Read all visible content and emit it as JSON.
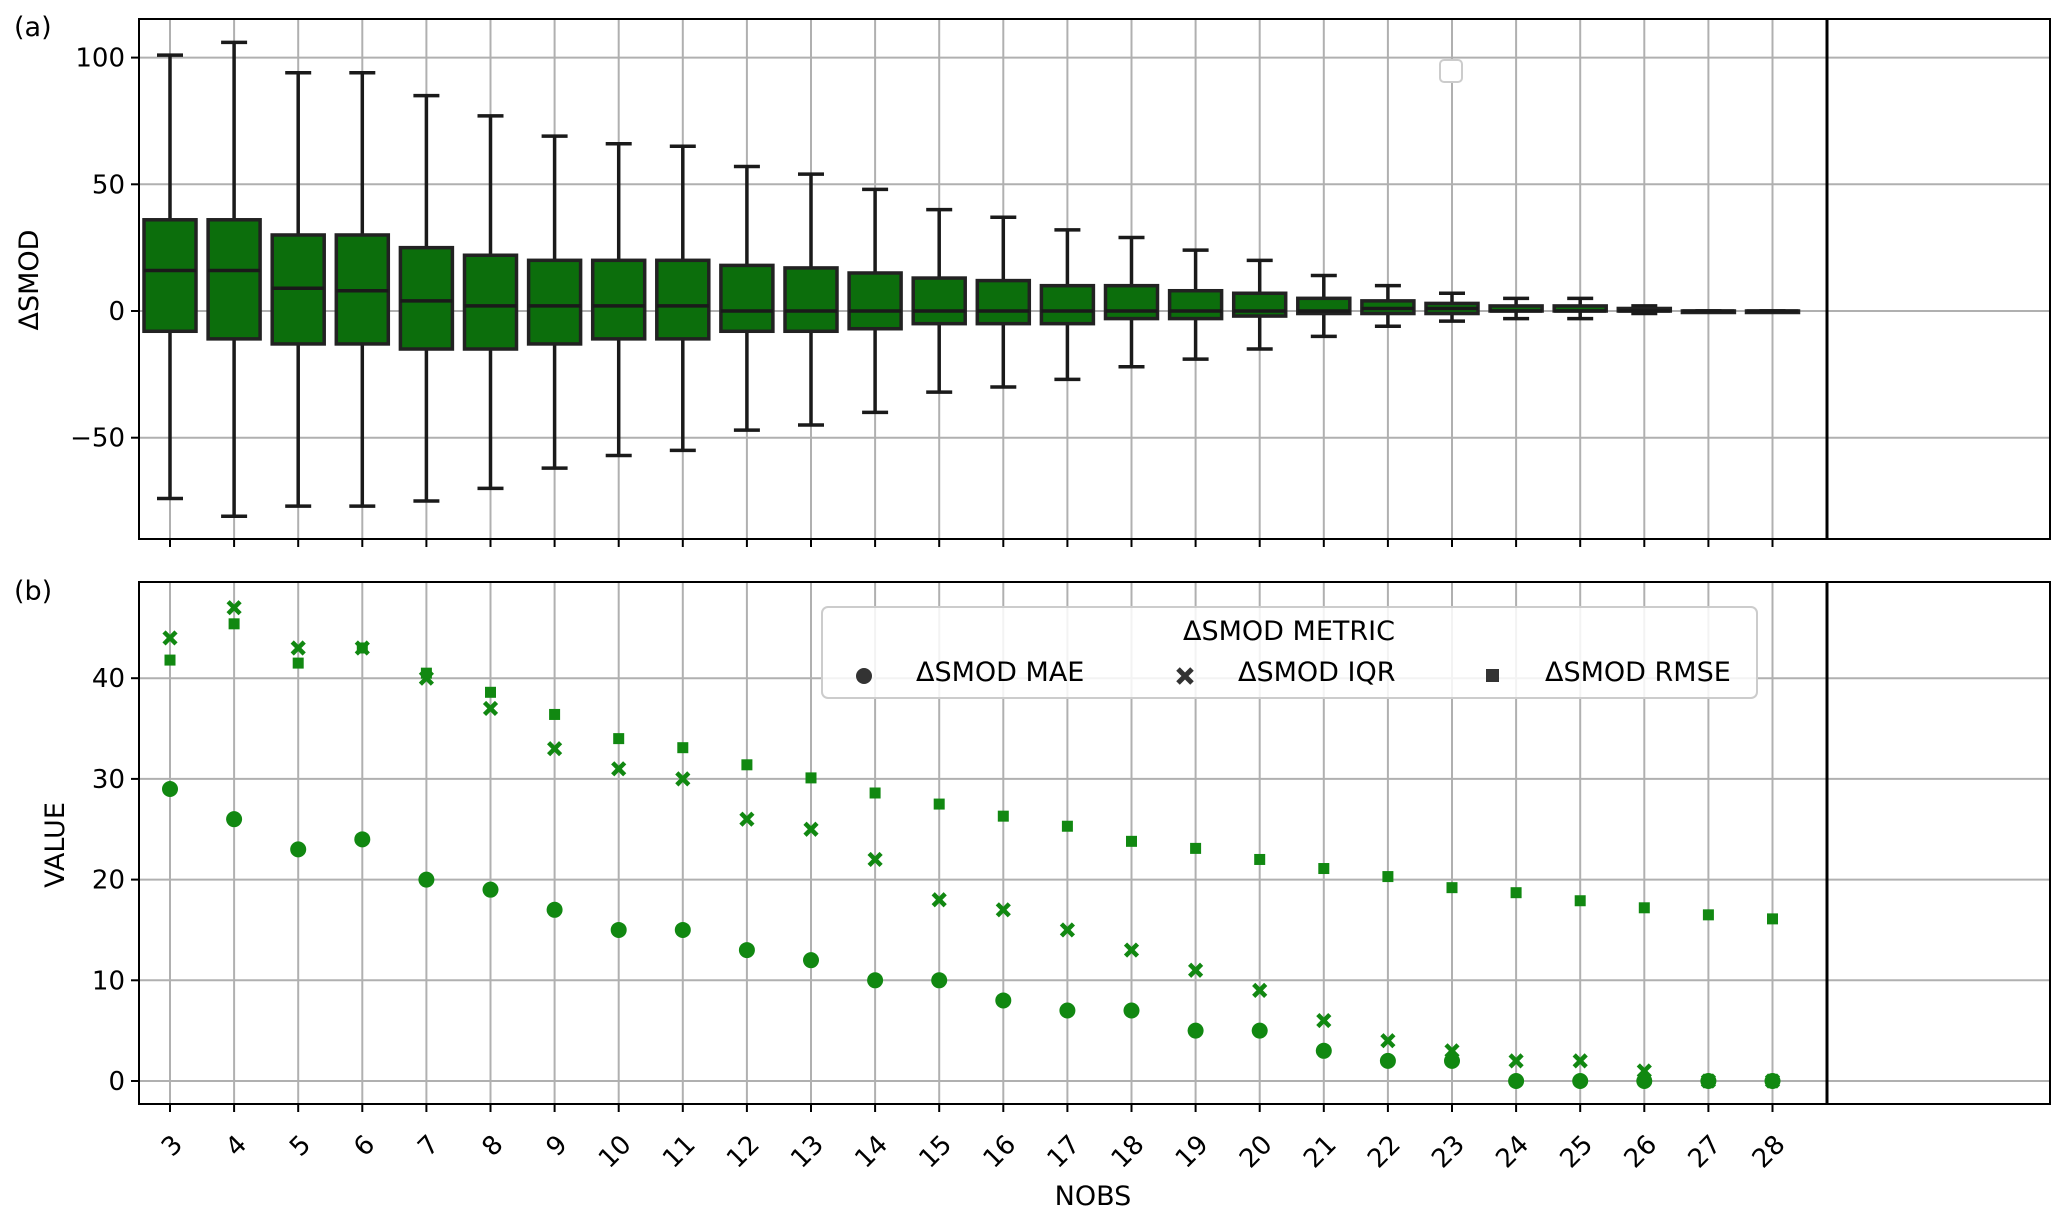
{
  "chart_data": [
    {
      "panel_label": "(a)",
      "type": "box",
      "ylabel": "ΔSMOD",
      "xlabel": "",
      "ylim": [
        -91,
        116
      ],
      "yticks": [
        100,
        50,
        0,
        -50
      ],
      "ytick_labels": [
        "100",
        "50",
        "0",
        "−50"
      ],
      "grid": true,
      "fill_color": "#0c6e0c",
      "edge_color": "#222222",
      "categories": [
        "3",
        "4",
        "5",
        "6",
        "7",
        "8",
        "9",
        "10",
        "11",
        "12",
        "13",
        "14",
        "15",
        "16",
        "17",
        "18",
        "19",
        "20",
        "21",
        "22",
        "23",
        "24",
        "25",
        "26",
        "27",
        "28"
      ],
      "boxes": [
        {
          "low": -74,
          "q1": -8,
          "median": 16,
          "q3": 36,
          "high": 101
        },
        {
          "low": -81,
          "q1": -11,
          "median": 16,
          "q3": 36,
          "high": 106
        },
        {
          "low": -77,
          "q1": -13,
          "median": 9,
          "q3": 30,
          "high": 94
        },
        {
          "low": -77,
          "q1": -13,
          "median": 8,
          "q3": 30,
          "high": 94
        },
        {
          "low": -75,
          "q1": -15,
          "median": 4,
          "q3": 25,
          "high": 85
        },
        {
          "low": -70,
          "q1": -15,
          "median": 2,
          "q3": 22,
          "high": 77
        },
        {
          "low": -62,
          "q1": -13,
          "median": 2,
          "q3": 20,
          "high": 69
        },
        {
          "low": -57,
          "q1": -11,
          "median": 2,
          "q3": 20,
          "high": 66
        },
        {
          "low": -55,
          "q1": -11,
          "median": 2,
          "q3": 20,
          "high": 65
        },
        {
          "low": -47,
          "q1": -8,
          "median": 0,
          "q3": 18,
          "high": 57
        },
        {
          "low": -45,
          "q1": -8,
          "median": 0,
          "q3": 17,
          "high": 54
        },
        {
          "low": -40,
          "q1": -7,
          "median": 0,
          "q3": 15,
          "high": 48
        },
        {
          "low": -32,
          "q1": -5,
          "median": 0,
          "q3": 13,
          "high": 40
        },
        {
          "low": -30,
          "q1": -5,
          "median": 0,
          "q3": 12,
          "high": 37
        },
        {
          "low": -27,
          "q1": -5,
          "median": 0,
          "q3": 10,
          "high": 32
        },
        {
          "low": -22,
          "q1": -3,
          "median": 0,
          "q3": 10,
          "high": 29
        },
        {
          "low": -19,
          "q1": -3,
          "median": 0,
          "q3": 8,
          "high": 24
        },
        {
          "low": -15,
          "q1": -2,
          "median": 0,
          "q3": 7,
          "high": 20
        },
        {
          "low": -10,
          "q1": -1,
          "median": 0,
          "q3": 5,
          "high": 14
        },
        {
          "low": -6,
          "q1": -1,
          "median": 1,
          "q3": 4,
          "high": 10
        },
        {
          "low": -4,
          "q1": -1,
          "median": 1,
          "q3": 3,
          "high": 7
        },
        {
          "low": -3,
          "q1": 0,
          "median": 0,
          "q3": 2,
          "high": 5
        },
        {
          "low": -3,
          "q1": 0,
          "median": 0,
          "q3": 2,
          "high": 5
        },
        {
          "low": -1,
          "q1": 0,
          "median": 0,
          "q3": 1,
          "high": 2
        },
        {
          "low": 0,
          "q1": 0,
          "median": 0,
          "q3": 0,
          "high": 0
        },
        {
          "low": 0,
          "q1": 0,
          "median": 0,
          "q3": 0,
          "high": 0
        }
      ]
    },
    {
      "panel_label": "(b)",
      "type": "scatter",
      "xlabel": "NOBS",
      "ylabel": "VALUE",
      "ylim": [
        -2.5,
        49.5
      ],
      "yticks": [
        40,
        30,
        20,
        10,
        0
      ],
      "ytick_labels": [
        "40",
        "30",
        "20",
        "10",
        "0"
      ],
      "grid": true,
      "marker_color": "#118811",
      "legend": {
        "title": "ΔSMOD METRIC",
        "placement": "upper center"
      },
      "categories": [
        "3",
        "4",
        "5",
        "6",
        "7",
        "8",
        "9",
        "10",
        "11",
        "12",
        "13",
        "14",
        "15",
        "16",
        "17",
        "18",
        "19",
        "20",
        "21",
        "22",
        "23",
        "24",
        "25",
        "26",
        "27",
        "28"
      ],
      "series": [
        {
          "name": "ΔSMOD MAE",
          "marker": "circle",
          "values": [
            29,
            26,
            23,
            24,
            20,
            19,
            17,
            15,
            15,
            13,
            12,
            10,
            10,
            8,
            7,
            7,
            5,
            5,
            3,
            2,
            2,
            0,
            0,
            0,
            0,
            0
          ]
        },
        {
          "name": "ΔSMOD IQR",
          "marker": "x",
          "values": [
            44,
            47,
            43,
            43,
            40,
            37,
            33,
            31,
            30,
            26,
            25,
            22,
            18,
            17,
            15,
            13,
            11,
            9,
            6,
            4,
            3,
            2,
            2,
            1,
            0,
            0
          ]
        },
        {
          "name": "ΔSMOD RMSE",
          "marker": "square",
          "values": [
            41.8,
            45.4,
            41.5,
            43,
            40.5,
            38.6,
            36.4,
            34,
            33.1,
            31.4,
            30.1,
            28.6,
            27.5,
            26.3,
            25.3,
            23.8,
            23.1,
            22,
            21.1,
            20.3,
            19.2,
            18.7,
            17.9,
            17.2,
            16.5,
            16.1
          ]
        }
      ]
    }
  ]
}
